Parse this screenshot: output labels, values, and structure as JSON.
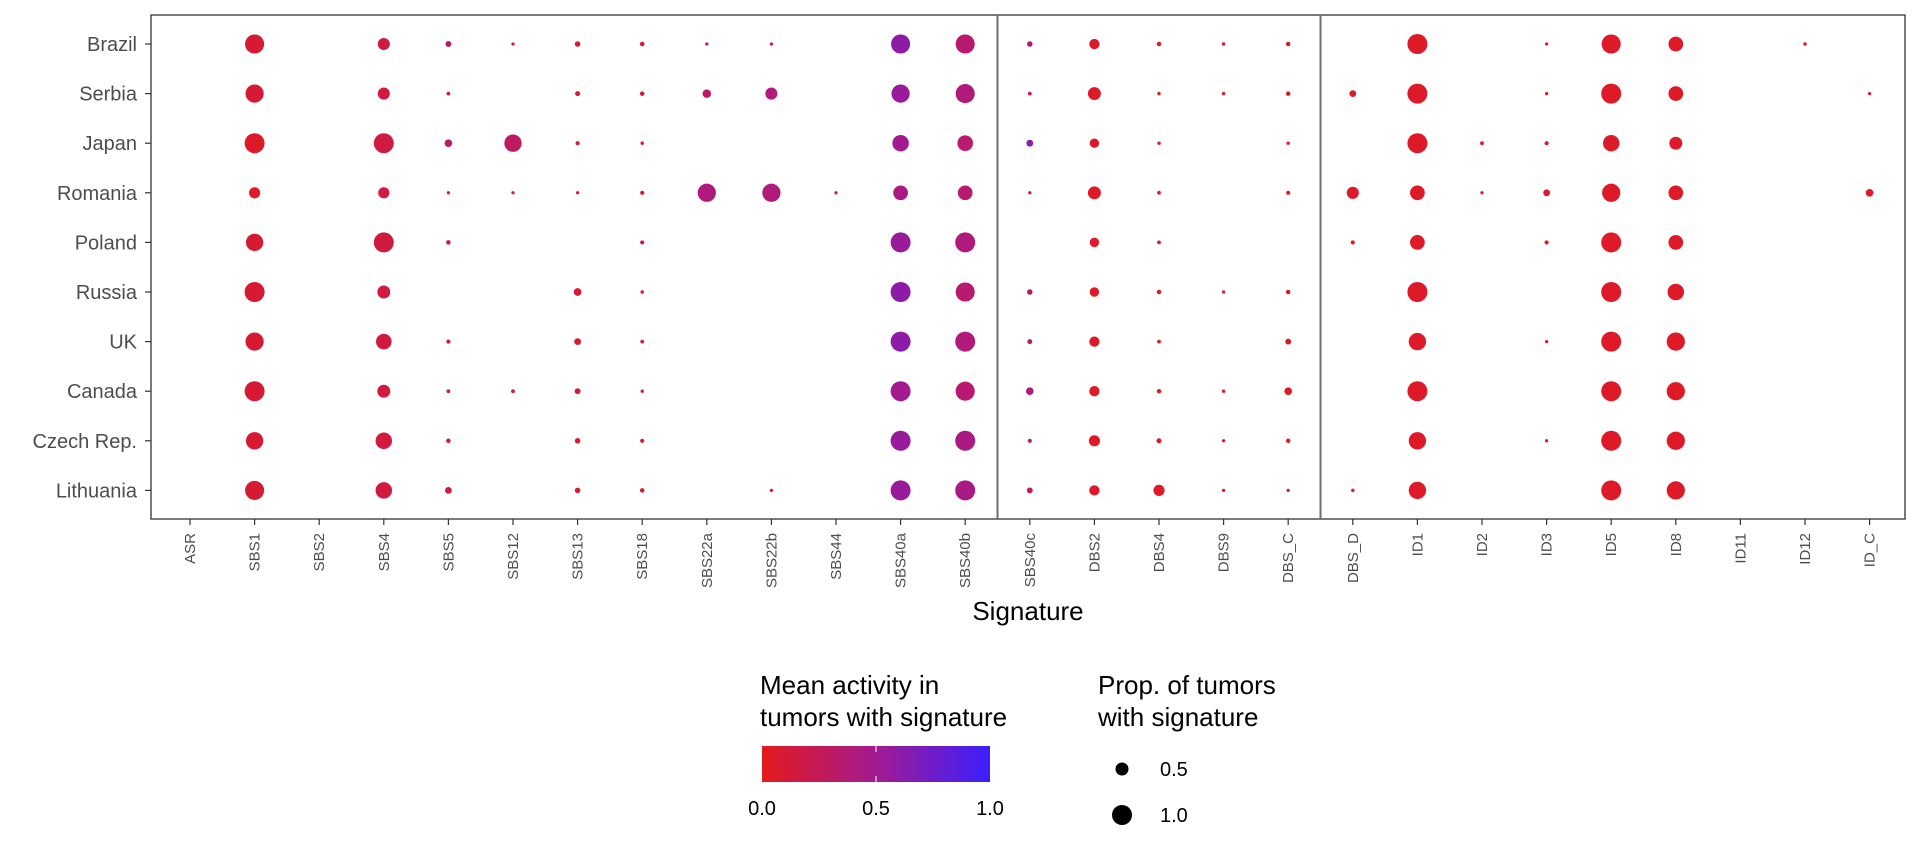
{
  "chart_data": {
    "type": "scatter",
    "xlabel": "Signature",
    "ylabel": "",
    "x_categories": [
      "ASR",
      "SBS1",
      "SBS2",
      "SBS4",
      "SBS5",
      "SBS12",
      "SBS13",
      "SBS18",
      "SBS22a",
      "SBS22b",
      "SBS44",
      "SBS40a",
      "SBS40b",
      "SBS40c",
      "DBS2",
      "DBS4",
      "DBS9",
      "DBS_C",
      "DBS_D",
      "ID1",
      "ID2",
      "ID3",
      "ID5",
      "ID8",
      "ID11",
      "ID12",
      "ID_C"
    ],
    "y_categories": [
      "Brazil",
      "Serbia",
      "Japan",
      "Romania",
      "Poland",
      "Russia",
      "UK",
      "Canada",
      "Czech Rep.",
      "Lithuania"
    ],
    "panel_breaks_after": [
      "SBS40b",
      "DBS_C"
    ],
    "legend": {
      "color": {
        "title_line1": "Mean activity in",
        "title_line2": "tumors with signature",
        "ticks": [
          "0.0",
          "0.5",
          "1.0"
        ],
        "low": "#e41a1c",
        "high": "#3b1fff"
      },
      "size": {
        "title_line1": "Prop. of tumors",
        "title_line2": "with signature",
        "ticks": [
          "0.5",
          "1.0"
        ]
      }
    },
    "points": [
      {
        "y": "Brazil",
        "x": "SBS1",
        "prop": 0.95,
        "activity": 0.1
      },
      {
        "y": "Brazil",
        "x": "SBS4",
        "prop": 0.55,
        "activity": 0.15
      },
      {
        "y": "Brazil",
        "x": "SBS5",
        "prop": 0.2,
        "activity": 0.3
      },
      {
        "y": "Brazil",
        "x": "SBS12",
        "prop": 0.05,
        "activity": 0.1
      },
      {
        "y": "Brazil",
        "x": "SBS13",
        "prop": 0.18,
        "activity": 0.1
      },
      {
        "y": "Brazil",
        "x": "SBS18",
        "prop": 0.12,
        "activity": 0.1
      },
      {
        "y": "Brazil",
        "x": "SBS22a",
        "prop": 0.05,
        "activity": 0.3
      },
      {
        "y": "Brazil",
        "x": "SBS22b",
        "prop": 0.05,
        "activity": 0.3
      },
      {
        "y": "Brazil",
        "x": "SBS40a",
        "prop": 0.95,
        "activity": 0.6
      },
      {
        "y": "Brazil",
        "x": "SBS40b",
        "prop": 0.95,
        "activity": 0.35
      },
      {
        "y": "Brazil",
        "x": "SBS40c",
        "prop": 0.18,
        "activity": 0.4
      },
      {
        "y": "Brazil",
        "x": "DBS2",
        "prop": 0.45,
        "activity": 0.05
      },
      {
        "y": "Brazil",
        "x": "DBS4",
        "prop": 0.12,
        "activity": 0.05
      },
      {
        "y": "Brazil",
        "x": "DBS9",
        "prop": 0.06,
        "activity": 0.05
      },
      {
        "y": "Brazil",
        "x": "DBS_C",
        "prop": 0.12,
        "activity": 0.05
      },
      {
        "y": "Brazil",
        "x": "ID1",
        "prop": 1.0,
        "activity": 0.05
      },
      {
        "y": "Brazil",
        "x": "ID3",
        "prop": 0.05,
        "activity": 0.05
      },
      {
        "y": "Brazil",
        "x": "ID5",
        "prop": 0.95,
        "activity": 0.05
      },
      {
        "y": "Brazil",
        "x": "ID8",
        "prop": 0.7,
        "activity": 0.05
      },
      {
        "y": "Brazil",
        "x": "ID12",
        "prop": 0.06,
        "activity": 0.05
      },
      {
        "y": "Serbia",
        "x": "SBS1",
        "prop": 0.9,
        "activity": 0.1
      },
      {
        "y": "Serbia",
        "x": "SBS4",
        "prop": 0.55,
        "activity": 0.15
      },
      {
        "y": "Serbia",
        "x": "SBS5",
        "prop": 0.08,
        "activity": 0.1
      },
      {
        "y": "Serbia",
        "x": "SBS13",
        "prop": 0.15,
        "activity": 0.1
      },
      {
        "y": "Serbia",
        "x": "SBS18",
        "prop": 0.12,
        "activity": 0.1
      },
      {
        "y": "Serbia",
        "x": "SBS22a",
        "prop": 0.35,
        "activity": 0.3
      },
      {
        "y": "Serbia",
        "x": "SBS22b",
        "prop": 0.55,
        "activity": 0.4
      },
      {
        "y": "Serbia",
        "x": "SBS40a",
        "prop": 0.9,
        "activity": 0.55
      },
      {
        "y": "Serbia",
        "x": "SBS40b",
        "prop": 0.95,
        "activity": 0.4
      },
      {
        "y": "Serbia",
        "x": "SBS40c",
        "prop": 0.08,
        "activity": 0.2
      },
      {
        "y": "Serbia",
        "x": "DBS2",
        "prop": 0.6,
        "activity": 0.05
      },
      {
        "y": "Serbia",
        "x": "DBS4",
        "prop": 0.06,
        "activity": 0.05
      },
      {
        "y": "Serbia",
        "x": "DBS9",
        "prop": 0.06,
        "activity": 0.05
      },
      {
        "y": "Serbia",
        "x": "DBS_C",
        "prop": 0.12,
        "activity": 0.05
      },
      {
        "y": "Serbia",
        "x": "DBS_D",
        "prop": 0.25,
        "activity": 0.05
      },
      {
        "y": "Serbia",
        "x": "ID1",
        "prop": 1.0,
        "activity": 0.05
      },
      {
        "y": "Serbia",
        "x": "ID3",
        "prop": 0.05,
        "activity": 0.05
      },
      {
        "y": "Serbia",
        "x": "ID5",
        "prop": 1.0,
        "activity": 0.05
      },
      {
        "y": "Serbia",
        "x": "ID8",
        "prop": 0.7,
        "activity": 0.05
      },
      {
        "y": "Serbia",
        "x": "ID_C",
        "prop": 0.05,
        "activity": 0.05
      },
      {
        "y": "Japan",
        "x": "SBS1",
        "prop": 1.0,
        "activity": 0.05
      },
      {
        "y": "Japan",
        "x": "SBS4",
        "prop": 1.0,
        "activity": 0.15
      },
      {
        "y": "Japan",
        "x": "SBS5",
        "prop": 0.3,
        "activity": 0.3
      },
      {
        "y": "Japan",
        "x": "SBS12",
        "prop": 0.85,
        "activity": 0.3
      },
      {
        "y": "Japan",
        "x": "SBS13",
        "prop": 0.1,
        "activity": 0.1
      },
      {
        "y": "Japan",
        "x": "SBS18",
        "prop": 0.06,
        "activity": 0.1
      },
      {
        "y": "Japan",
        "x": "SBS40a",
        "prop": 0.8,
        "activity": 0.5
      },
      {
        "y": "Japan",
        "x": "SBS40b",
        "prop": 0.75,
        "activity": 0.35
      },
      {
        "y": "Japan",
        "x": "SBS40c",
        "prop": 0.25,
        "activity": 0.6
      },
      {
        "y": "Japan",
        "x": "DBS2",
        "prop": 0.4,
        "activity": 0.05
      },
      {
        "y": "Japan",
        "x": "DBS4",
        "prop": 0.06,
        "activity": 0.05
      },
      {
        "y": "Japan",
        "x": "DBS_C",
        "prop": 0.06,
        "activity": 0.05
      },
      {
        "y": "Japan",
        "x": "ID1",
        "prop": 1.0,
        "activity": 0.05
      },
      {
        "y": "Japan",
        "x": "ID2",
        "prop": 0.08,
        "activity": 0.05
      },
      {
        "y": "Japan",
        "x": "ID3",
        "prop": 0.1,
        "activity": 0.05
      },
      {
        "y": "Japan",
        "x": "ID5",
        "prop": 0.8,
        "activity": 0.05
      },
      {
        "y": "Japan",
        "x": "ID8",
        "prop": 0.6,
        "activity": 0.05
      },
      {
        "y": "Romania",
        "x": "SBS1",
        "prop": 0.5,
        "activity": 0.05
      },
      {
        "y": "Romania",
        "x": "SBS4",
        "prop": 0.5,
        "activity": 0.15
      },
      {
        "y": "Romania",
        "x": "SBS5",
        "prop": 0.05,
        "activity": 0.1
      },
      {
        "y": "Romania",
        "x": "SBS12",
        "prop": 0.05,
        "activity": 0.1
      },
      {
        "y": "Romania",
        "x": "SBS13",
        "prop": 0.05,
        "activity": 0.1
      },
      {
        "y": "Romania",
        "x": "SBS18",
        "prop": 0.1,
        "activity": 0.1
      },
      {
        "y": "Romania",
        "x": "SBS22a",
        "prop": 0.9,
        "activity": 0.4
      },
      {
        "y": "Romania",
        "x": "SBS22b",
        "prop": 0.9,
        "activity": 0.4
      },
      {
        "y": "Romania",
        "x": "SBS44",
        "prop": 0.05,
        "activity": 0.1
      },
      {
        "y": "Romania",
        "x": "SBS40a",
        "prop": 0.7,
        "activity": 0.45
      },
      {
        "y": "Romania",
        "x": "SBS40b",
        "prop": 0.7,
        "activity": 0.35
      },
      {
        "y": "Romania",
        "x": "SBS40c",
        "prop": 0.05,
        "activity": 0.1
      },
      {
        "y": "Romania",
        "x": "DBS2",
        "prop": 0.6,
        "activity": 0.05
      },
      {
        "y": "Romania",
        "x": "DBS4",
        "prop": 0.08,
        "activity": 0.05
      },
      {
        "y": "Romania",
        "x": "DBS_C",
        "prop": 0.1,
        "activity": 0.05
      },
      {
        "y": "Romania",
        "x": "DBS_D",
        "prop": 0.55,
        "activity": 0.05
      },
      {
        "y": "Romania",
        "x": "ID1",
        "prop": 0.7,
        "activity": 0.05
      },
      {
        "y": "Romania",
        "x": "ID2",
        "prop": 0.05,
        "activity": 0.05
      },
      {
        "y": "Romania",
        "x": "ID3",
        "prop": 0.25,
        "activity": 0.05
      },
      {
        "y": "Romania",
        "x": "ID5",
        "prop": 0.9,
        "activity": 0.05
      },
      {
        "y": "Romania",
        "x": "ID8",
        "prop": 0.7,
        "activity": 0.05
      },
      {
        "y": "Romania",
        "x": "ID_C",
        "prop": 0.3,
        "activity": 0.05
      },
      {
        "y": "Poland",
        "x": "SBS1",
        "prop": 0.85,
        "activity": 0.1
      },
      {
        "y": "Poland",
        "x": "SBS4",
        "prop": 1.0,
        "activity": 0.15
      },
      {
        "y": "Poland",
        "x": "SBS5",
        "prop": 0.12,
        "activity": 0.2
      },
      {
        "y": "Poland",
        "x": "SBS18",
        "prop": 0.1,
        "activity": 0.3
      },
      {
        "y": "Poland",
        "x": "SBS40a",
        "prop": 1.0,
        "activity": 0.55
      },
      {
        "y": "Poland",
        "x": "SBS40b",
        "prop": 1.0,
        "activity": 0.4
      },
      {
        "y": "Poland",
        "x": "DBS2",
        "prop": 0.4,
        "activity": 0.05
      },
      {
        "y": "Poland",
        "x": "DBS4",
        "prop": 0.08,
        "activity": 0.05
      },
      {
        "y": "Poland",
        "x": "DBS_D",
        "prop": 0.1,
        "activity": 0.05
      },
      {
        "y": "Poland",
        "x": "ID1",
        "prop": 0.7,
        "activity": 0.05
      },
      {
        "y": "Poland",
        "x": "ID3",
        "prop": 0.1,
        "activity": 0.05
      },
      {
        "y": "Poland",
        "x": "ID5",
        "prop": 1.0,
        "activity": 0.05
      },
      {
        "y": "Poland",
        "x": "ID8",
        "prop": 0.7,
        "activity": 0.05
      },
      {
        "y": "Russia",
        "x": "SBS1",
        "prop": 1.0,
        "activity": 0.1
      },
      {
        "y": "Russia",
        "x": "SBS4",
        "prop": 0.6,
        "activity": 0.15
      },
      {
        "y": "Russia",
        "x": "SBS13",
        "prop": 0.3,
        "activity": 0.1
      },
      {
        "y": "Russia",
        "x": "SBS18",
        "prop": 0.06,
        "activity": 0.1
      },
      {
        "y": "Russia",
        "x": "SBS40a",
        "prop": 1.0,
        "activity": 0.6
      },
      {
        "y": "Russia",
        "x": "SBS40b",
        "prop": 0.95,
        "activity": 0.35
      },
      {
        "y": "Russia",
        "x": "SBS40c",
        "prop": 0.18,
        "activity": 0.3
      },
      {
        "y": "Russia",
        "x": "DBS2",
        "prop": 0.4,
        "activity": 0.05
      },
      {
        "y": "Russia",
        "x": "DBS4",
        "prop": 0.12,
        "activity": 0.05
      },
      {
        "y": "Russia",
        "x": "DBS9",
        "prop": 0.05,
        "activity": 0.05
      },
      {
        "y": "Russia",
        "x": "DBS_C",
        "prop": 0.12,
        "activity": 0.05
      },
      {
        "y": "Russia",
        "x": "ID1",
        "prop": 1.0,
        "activity": 0.05
      },
      {
        "y": "Russia",
        "x": "ID5",
        "prop": 1.0,
        "activity": 0.05
      },
      {
        "y": "Russia",
        "x": "ID8",
        "prop": 0.8,
        "activity": 0.05
      },
      {
        "y": "UK",
        "x": "SBS1",
        "prop": 0.9,
        "activity": 0.1
      },
      {
        "y": "UK",
        "x": "SBS4",
        "prop": 0.75,
        "activity": 0.15
      },
      {
        "y": "UK",
        "x": "SBS5",
        "prop": 0.1,
        "activity": 0.2
      },
      {
        "y": "UK",
        "x": "SBS13",
        "prop": 0.25,
        "activity": 0.1
      },
      {
        "y": "UK",
        "x": "SBS18",
        "prop": 0.08,
        "activity": 0.1
      },
      {
        "y": "UK",
        "x": "SBS40a",
        "prop": 1.0,
        "activity": 0.6
      },
      {
        "y": "UK",
        "x": "SBS40b",
        "prop": 1.0,
        "activity": 0.4
      },
      {
        "y": "UK",
        "x": "SBS40c",
        "prop": 0.15,
        "activity": 0.3
      },
      {
        "y": "UK",
        "x": "DBS2",
        "prop": 0.45,
        "activity": 0.05
      },
      {
        "y": "UK",
        "x": "DBS4",
        "prop": 0.08,
        "activity": 0.05
      },
      {
        "y": "UK",
        "x": "DBS_C",
        "prop": 0.2,
        "activity": 0.05
      },
      {
        "y": "UK",
        "x": "ID1",
        "prop": 0.85,
        "activity": 0.05
      },
      {
        "y": "UK",
        "x": "ID3",
        "prop": 0.05,
        "activity": 0.05
      },
      {
        "y": "UK",
        "x": "ID5",
        "prop": 1.0,
        "activity": 0.05
      },
      {
        "y": "UK",
        "x": "ID8",
        "prop": 0.9,
        "activity": 0.05
      },
      {
        "y": "Canada",
        "x": "SBS1",
        "prop": 1.0,
        "activity": 0.1
      },
      {
        "y": "Canada",
        "x": "SBS4",
        "prop": 0.6,
        "activity": 0.15
      },
      {
        "y": "Canada",
        "x": "SBS5",
        "prop": 0.08,
        "activity": 0.2
      },
      {
        "y": "Canada",
        "x": "SBS12",
        "prop": 0.08,
        "activity": 0.1
      },
      {
        "y": "Canada",
        "x": "SBS13",
        "prop": 0.2,
        "activity": 0.1
      },
      {
        "y": "Canada",
        "x": "SBS18",
        "prop": 0.05,
        "activity": 0.1
      },
      {
        "y": "Canada",
        "x": "SBS40a",
        "prop": 1.0,
        "activity": 0.5
      },
      {
        "y": "Canada",
        "x": "SBS40b",
        "prop": 0.95,
        "activity": 0.35
      },
      {
        "y": "Canada",
        "x": "SBS40c",
        "prop": 0.3,
        "activity": 0.4
      },
      {
        "y": "Canada",
        "x": "DBS2",
        "prop": 0.45,
        "activity": 0.05
      },
      {
        "y": "Canada",
        "x": "DBS4",
        "prop": 0.12,
        "activity": 0.05
      },
      {
        "y": "Canada",
        "x": "DBS9",
        "prop": 0.06,
        "activity": 0.05
      },
      {
        "y": "Canada",
        "x": "DBS_C",
        "prop": 0.3,
        "activity": 0.05
      },
      {
        "y": "Canada",
        "x": "ID1",
        "prop": 1.0,
        "activity": 0.05
      },
      {
        "y": "Canada",
        "x": "ID5",
        "prop": 1.0,
        "activity": 0.05
      },
      {
        "y": "Canada",
        "x": "ID8",
        "prop": 0.9,
        "activity": 0.05
      },
      {
        "y": "Czech Rep.",
        "x": "SBS1",
        "prop": 0.85,
        "activity": 0.1
      },
      {
        "y": "Czech Rep.",
        "x": "SBS4",
        "prop": 0.8,
        "activity": 0.15
      },
      {
        "y": "Czech Rep.",
        "x": "SBS5",
        "prop": 0.12,
        "activity": 0.1
      },
      {
        "y": "Czech Rep.",
        "x": "SBS13",
        "prop": 0.18,
        "activity": 0.1
      },
      {
        "y": "Czech Rep.",
        "x": "SBS18",
        "prop": 0.1,
        "activity": 0.1
      },
      {
        "y": "Czech Rep.",
        "x": "SBS40a",
        "prop": 1.0,
        "activity": 0.55
      },
      {
        "y": "Czech Rep.",
        "x": "SBS40b",
        "prop": 1.0,
        "activity": 0.45
      },
      {
        "y": "Czech Rep.",
        "x": "SBS40c",
        "prop": 0.1,
        "activity": 0.2
      },
      {
        "y": "Czech Rep.",
        "x": "DBS2",
        "prop": 0.5,
        "activity": 0.05
      },
      {
        "y": "Czech Rep.",
        "x": "DBS4",
        "prop": 0.15,
        "activity": 0.05
      },
      {
        "y": "Czech Rep.",
        "x": "DBS9",
        "prop": 0.05,
        "activity": 0.05
      },
      {
        "y": "Czech Rep.",
        "x": "DBS_C",
        "prop": 0.12,
        "activity": 0.05
      },
      {
        "y": "Czech Rep.",
        "x": "ID1",
        "prop": 0.85,
        "activity": 0.05
      },
      {
        "y": "Czech Rep.",
        "x": "ID3",
        "prop": 0.05,
        "activity": 0.05
      },
      {
        "y": "Czech Rep.",
        "x": "ID5",
        "prop": 1.0,
        "activity": 0.05
      },
      {
        "y": "Czech Rep.",
        "x": "ID8",
        "prop": 0.9,
        "activity": 0.05
      },
      {
        "y": "Lithuania",
        "x": "SBS1",
        "prop": 0.95,
        "activity": 0.1
      },
      {
        "y": "Lithuania",
        "x": "SBS4",
        "prop": 0.8,
        "activity": 0.15
      },
      {
        "y": "Lithuania",
        "x": "SBS5",
        "prop": 0.25,
        "activity": 0.15
      },
      {
        "y": "Lithuania",
        "x": "SBS13",
        "prop": 0.18,
        "activity": 0.1
      },
      {
        "y": "Lithuania",
        "x": "SBS18",
        "prop": 0.12,
        "activity": 0.1
      },
      {
        "y": "Lithuania",
        "x": "SBS22b",
        "prop": 0.05,
        "activity": 0.1
      },
      {
        "y": "Lithuania",
        "x": "SBS40a",
        "prop": 1.0,
        "activity": 0.55
      },
      {
        "y": "Lithuania",
        "x": "SBS40b",
        "prop": 1.0,
        "activity": 0.45
      },
      {
        "y": "Lithuania",
        "x": "SBS40c",
        "prop": 0.2,
        "activity": 0.3
      },
      {
        "y": "Lithuania",
        "x": "DBS2",
        "prop": 0.45,
        "activity": 0.05
      },
      {
        "y": "Lithuania",
        "x": "DBS4",
        "prop": 0.5,
        "activity": 0.05
      },
      {
        "y": "Lithuania",
        "x": "DBS9",
        "prop": 0.05,
        "activity": 0.05
      },
      {
        "y": "Lithuania",
        "x": "DBS_C",
        "prop": 0.05,
        "activity": 0.05
      },
      {
        "y": "Lithuania",
        "x": "DBS_D",
        "prop": 0.06,
        "activity": 0.05
      },
      {
        "y": "Lithuania",
        "x": "ID1",
        "prop": 0.85,
        "activity": 0.05
      },
      {
        "y": "Lithuania",
        "x": "ID5",
        "prop": 1.0,
        "activity": 0.05
      },
      {
        "y": "Lithuania",
        "x": "ID8",
        "prop": 0.9,
        "activity": 0.05
      }
    ]
  }
}
